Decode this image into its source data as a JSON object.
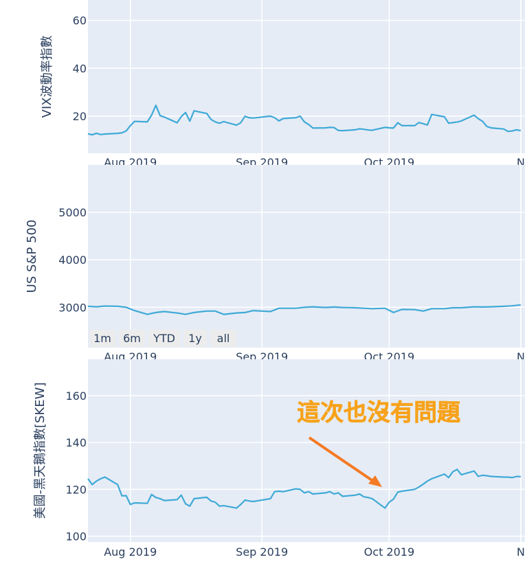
{
  "annotation": {
    "text": "這次也沒有問題"
  },
  "range_selector": {
    "buttons": [
      "1m",
      "6m",
      "YTD",
      "1y",
      "all"
    ]
  },
  "chart_data": [
    {
      "type": "line",
      "ylabel": "VIX波動率指數",
      "x_ticks": [
        "Aug 2019",
        "Sep 2019",
        "Oct 2019",
        "N"
      ],
      "y_ticks": [
        20,
        40,
        60
      ],
      "ylim": [
        4.5,
        68.5
      ],
      "xlim": [
        "2019-07-22",
        "2019-11-02"
      ],
      "grid": true,
      "series": [
        {
          "x": [
            "2019-07-22",
            "2019-07-23",
            "2019-07-24",
            "2019-07-25",
            "2019-07-26",
            "2019-07-29",
            "2019-07-30",
            "2019-07-31",
            "2019-08-01",
            "2019-08-02",
            "2019-08-05",
            "2019-08-06",
            "2019-08-07",
            "2019-08-08",
            "2019-08-09",
            "2019-08-12",
            "2019-08-13",
            "2019-08-14",
            "2019-08-15",
            "2019-08-16",
            "2019-08-19",
            "2019-08-20",
            "2019-08-21",
            "2019-08-22",
            "2019-08-23",
            "2019-08-26",
            "2019-08-27",
            "2019-08-28",
            "2019-08-29",
            "2019-08-30",
            "2019-09-03",
            "2019-09-04",
            "2019-09-05",
            "2019-09-06",
            "2019-09-09",
            "2019-09-10",
            "2019-09-11",
            "2019-09-12",
            "2019-09-13",
            "2019-09-16",
            "2019-09-17",
            "2019-09-18",
            "2019-09-19",
            "2019-09-20",
            "2019-09-23",
            "2019-09-24",
            "2019-09-25",
            "2019-09-26",
            "2019-09-27",
            "2019-09-30",
            "2019-10-01",
            "2019-10-02",
            "2019-10-03",
            "2019-10-04",
            "2019-10-07",
            "2019-10-08",
            "2019-10-09",
            "2019-10-10",
            "2019-10-11",
            "2019-10-14",
            "2019-10-15",
            "2019-10-16",
            "2019-10-17",
            "2019-10-18",
            "2019-10-21",
            "2019-10-22",
            "2019-10-23",
            "2019-10-24",
            "2019-10-25",
            "2019-10-28",
            "2019-10-29",
            "2019-10-30",
            "2019-10-31",
            "2019-11-01"
          ],
          "y": [
            12.6,
            12.2,
            12.8,
            12.3,
            12.5,
            12.8,
            13.0,
            13.8,
            16.0,
            17.8,
            17.6,
            20.4,
            24.5,
            20.2,
            19.6,
            17.2,
            19.8,
            21.5,
            17.9,
            22.2,
            21.1,
            18.6,
            17.6,
            17.0,
            17.7,
            16.2,
            17.2,
            19.9,
            19.3,
            19.2,
            20.0,
            19.3,
            18.0,
            19.0,
            19.3,
            20.0,
            17.6,
            16.5,
            15.0,
            15.1,
            15.3,
            15.2,
            14.0,
            13.9,
            14.3,
            14.7,
            14.5,
            14.2,
            14.1,
            15.3,
            15.1,
            15.0,
            17.2,
            16.0,
            16.0,
            17.3,
            16.8,
            16.3,
            20.7,
            19.7,
            17.0,
            17.3,
            17.5,
            18.0,
            20.4,
            18.9,
            17.8,
            15.7,
            15.1,
            14.6,
            13.6,
            13.8,
            14.3,
            13.9
          ]
        }
      ]
    },
    {
      "type": "line",
      "ylabel": "US  S&P 500",
      "x_ticks": [
        "Aug 2019",
        "Sep 2019",
        "Oct 2019",
        "N"
      ],
      "y_ticks": [
        3000,
        4000,
        5000
      ],
      "ylim": [
        2150,
        6000
      ],
      "xlim": [
        "2019-07-22",
        "2019-11-02"
      ],
      "grid": true,
      "series": [
        {
          "x": [
            "2019-07-22",
            "2019-07-24",
            "2019-07-26",
            "2019-07-29",
            "2019-07-31",
            "2019-08-02",
            "2019-08-05",
            "2019-08-07",
            "2019-08-09",
            "2019-08-12",
            "2019-08-14",
            "2019-08-16",
            "2019-08-19",
            "2019-08-21",
            "2019-08-23",
            "2019-08-26",
            "2019-08-28",
            "2019-08-30",
            "2019-09-03",
            "2019-09-05",
            "2019-09-09",
            "2019-09-11",
            "2019-09-13",
            "2019-09-16",
            "2019-09-18",
            "2019-09-20",
            "2019-09-23",
            "2019-09-25",
            "2019-09-27",
            "2019-09-30",
            "2019-10-02",
            "2019-10-04",
            "2019-10-07",
            "2019-10-09",
            "2019-10-11",
            "2019-10-14",
            "2019-10-16",
            "2019-10-18",
            "2019-10-21",
            "2019-10-23",
            "2019-10-25",
            "2019-10-28",
            "2019-10-30",
            "2019-11-01"
          ],
          "y": [
            3020,
            3010,
            3025,
            3020,
            3000,
            2930,
            2850,
            2890,
            2910,
            2880,
            2850,
            2890,
            2920,
            2920,
            2850,
            2880,
            2890,
            2930,
            2910,
            2980,
            2980,
            3000,
            3010,
            2995,
            3005,
            2995,
            2990,
            2980,
            2970,
            2980,
            2890,
            2955,
            2950,
            2920,
            2970,
            2970,
            2990,
            2990,
            3010,
            3005,
            3010,
            3020,
            3030,
            3050
          ]
        }
      ]
    },
    {
      "type": "line",
      "ylabel": "美國-黑天鵝指數[SKEW]",
      "x_ticks": [
        "Aug 2019",
        "Sep 2019",
        "Oct 2019",
        "N"
      ],
      "y_ticks": [
        100,
        120,
        140,
        160
      ],
      "ylim": [
        97.5,
        175.5
      ],
      "xlim": [
        "2019-07-22",
        "2019-11-02"
      ],
      "grid": true,
      "series": [
        {
          "x": [
            "2019-07-22",
            "2019-07-23",
            "2019-07-24",
            "2019-07-25",
            "2019-07-26",
            "2019-07-29",
            "2019-07-30",
            "2019-07-31",
            "2019-08-01",
            "2019-08-02",
            "2019-08-05",
            "2019-08-06",
            "2019-08-07",
            "2019-08-08",
            "2019-08-09",
            "2019-08-12",
            "2019-08-13",
            "2019-08-14",
            "2019-08-15",
            "2019-08-16",
            "2019-08-19",
            "2019-08-20",
            "2019-08-21",
            "2019-08-22",
            "2019-08-23",
            "2019-08-26",
            "2019-08-27",
            "2019-08-28",
            "2019-08-29",
            "2019-08-30",
            "2019-09-03",
            "2019-09-04",
            "2019-09-05",
            "2019-09-06",
            "2019-09-09",
            "2019-09-10",
            "2019-09-11",
            "2019-09-12",
            "2019-09-13",
            "2019-09-16",
            "2019-09-17",
            "2019-09-18",
            "2019-09-19",
            "2019-09-20",
            "2019-09-23",
            "2019-09-24",
            "2019-09-25",
            "2019-09-26",
            "2019-09-27",
            "2019-09-30",
            "2019-10-01",
            "2019-10-02",
            "2019-10-03",
            "2019-10-04",
            "2019-10-07",
            "2019-10-08",
            "2019-10-09",
            "2019-10-10",
            "2019-10-11",
            "2019-10-14",
            "2019-10-15",
            "2019-10-16",
            "2019-10-17",
            "2019-10-18",
            "2019-10-21",
            "2019-10-22",
            "2019-10-23",
            "2019-10-24",
            "2019-10-25",
            "2019-10-28",
            "2019-10-29",
            "2019-10-30",
            "2019-10-31",
            "2019-11-01"
          ],
          "y": [
            124.5,
            122.0,
            123.5,
            124.5,
            125.2,
            122.0,
            117.2,
            117.3,
            113.5,
            114.2,
            114.0,
            117.8,
            116.5,
            116.0,
            115.2,
            115.6,
            117.5,
            113.8,
            112.8,
            116.0,
            116.6,
            115.0,
            114.5,
            112.8,
            113.0,
            112.0,
            113.5,
            115.4,
            115.0,
            114.8,
            116.0,
            119.0,
            119.2,
            119.0,
            120.2,
            120.0,
            118.5,
            119.0,
            118.0,
            118.5,
            119.0,
            118.0,
            118.5,
            117.0,
            117.5,
            118.0,
            116.8,
            116.5,
            116.0,
            112.0,
            114.5,
            115.8,
            118.8,
            119.2,
            120.0,
            121.0,
            122.2,
            123.5,
            124.5,
            126.5,
            125.0,
            127.5,
            128.5,
            126.2,
            127.8,
            125.5,
            126.0,
            125.8,
            125.5,
            125.2,
            125.2,
            125.0,
            125.5,
            125.4
          ]
        }
      ]
    }
  ]
}
